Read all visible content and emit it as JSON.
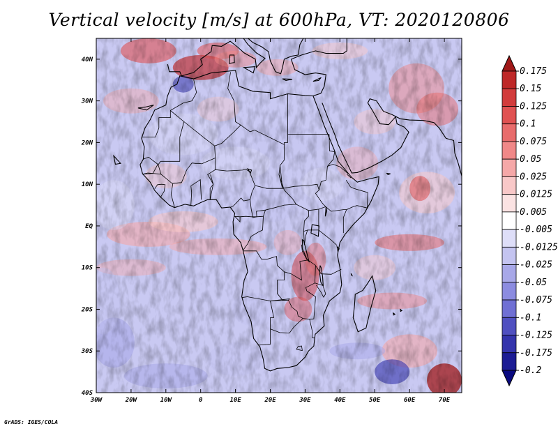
{
  "title": "Vertical velocity [m/s] at 600hPa, VT: 2020120806",
  "credit": "GrADS: IGES/COLA",
  "map": {
    "variable": "Vertical velocity",
    "level": "600hPa",
    "valid_time": "2020120806",
    "lon_range": [
      -30,
      75
    ],
    "lat_range": [
      -40,
      45
    ],
    "lon_ticks": [
      "30W",
      "20W",
      "10W",
      "0",
      "10E",
      "20E",
      "30E",
      "40E",
      "50E",
      "60E",
      "70E"
    ],
    "lat_ticks": [
      "40S",
      "30S",
      "20S",
      "10S",
      "EQ",
      "10N",
      "20N",
      "30N",
      "40N"
    ]
  },
  "colorbar": {
    "labels": [
      "0.175",
      "0.15",
      "0.125",
      "0.1",
      "0.075",
      "0.05",
      "0.025",
      "0.0125",
      "0.005",
      "-0.005",
      "-0.0125",
      "-0.025",
      "-0.05",
      "-0.075",
      "-0.1",
      "-0.125",
      "-0.175",
      "-0.2"
    ],
    "colors": [
      "#a01818",
      "#be2828",
      "#d23c3c",
      "#e05252",
      "#e86c6c",
      "#f08888",
      "#f5a8a8",
      "#f8c8c8",
      "#fbe3e3",
      "#ffffff",
      "#dedef8",
      "#c4c4f0",
      "#a8a8e8",
      "#8c8ce0",
      "#7070d4",
      "#5050c0",
      "#3434ac",
      "#1c1c94",
      "#0a0a80"
    ]
  }
}
